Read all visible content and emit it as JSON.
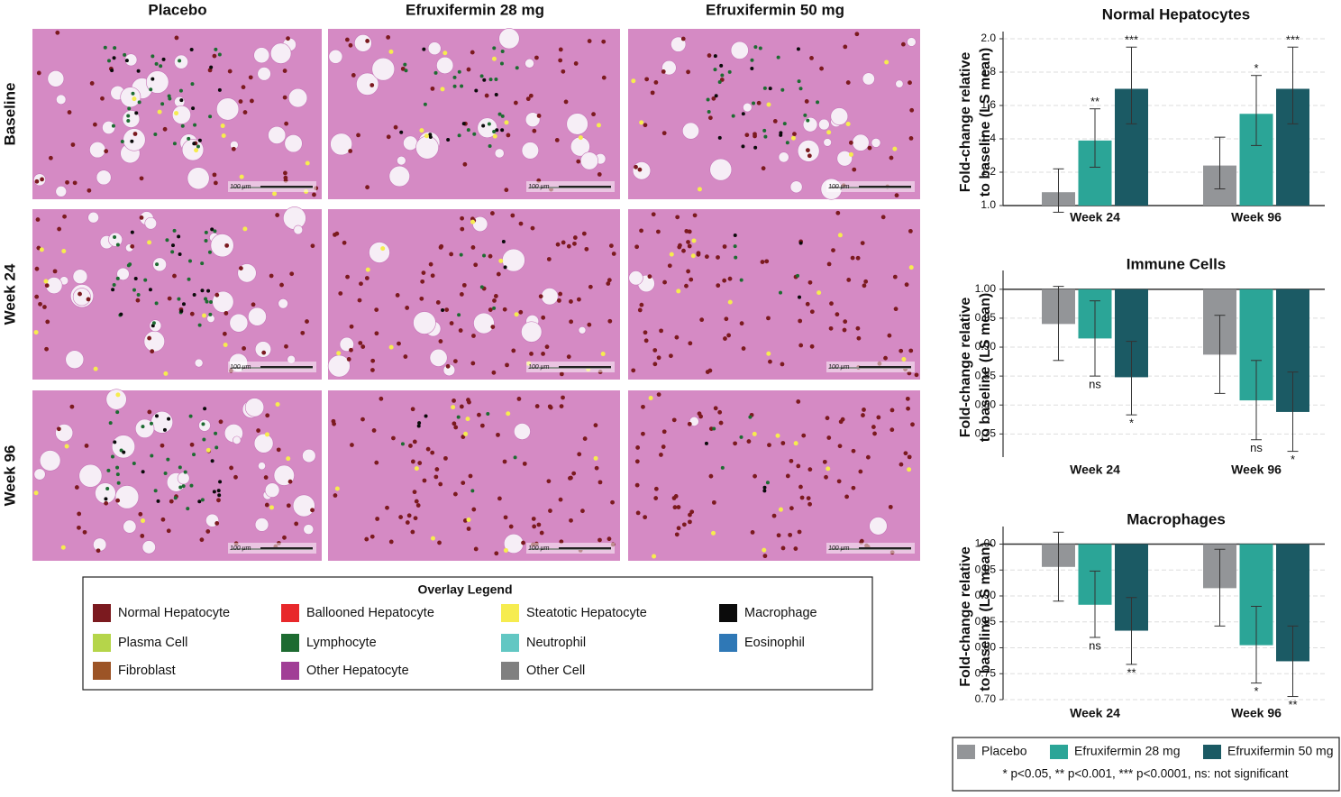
{
  "figure": {
    "column_headers": [
      "Placebo",
      "Efruxifermin 28 mg",
      "Efruxifermin 50 mg"
    ],
    "row_labels": [
      "Baseline",
      "Week 24",
      "Week 96"
    ],
    "scale_bar_label": "100 µm",
    "overlay_legend": {
      "title": "Overlay Legend",
      "items": [
        {
          "name": "Normal Hepatocyte",
          "color": "#7b1a1f"
        },
        {
          "name": "Ballooned Hepatocyte",
          "color": "#e8282b"
        },
        {
          "name": "Steatotic Hepatocyte",
          "color": "#f6ec4f"
        },
        {
          "name": "Macrophage",
          "color": "#0b0b0b"
        },
        {
          "name": "Plasma Cell",
          "color": "#b5d54a"
        },
        {
          "name": "Lymphocyte",
          "color": "#1d6b31"
        },
        {
          "name": "Neutrophil",
          "color": "#62c7c3"
        },
        {
          "name": "Eosinophil",
          "color": "#2f78b6"
        },
        {
          "name": "Fibroblast",
          "color": "#9c5426"
        },
        {
          "name": "Other Hepatocyte",
          "color": "#a13e96"
        },
        {
          "name": "Other Cell",
          "color": "#808080"
        }
      ]
    }
  },
  "chart_data": [
    {
      "type": "bar",
      "title": "Normal Hepatocytes",
      "ylabel": [
        "Fold-change relative",
        "to baseline (LS mean)"
      ],
      "categories": [
        "Week 24",
        "Week 96"
      ],
      "series": [
        {
          "name": "Placebo",
          "color": "#939598",
          "values": [
            1.08,
            1.24
          ],
          "lower": [
            0.96,
            1.1
          ],
          "upper": [
            1.22,
            1.41
          ],
          "significance": [
            null,
            null
          ]
        },
        {
          "name": "Efruxifermin 28 mg",
          "color": "#2ba597",
          "values": [
            1.39,
            1.55
          ],
          "lower": [
            1.23,
            1.36
          ],
          "upper": [
            1.58,
            1.78
          ],
          "significance": [
            "**",
            "*"
          ]
        },
        {
          "name": "Efruxifermin 50 mg",
          "color": "#1b5a64",
          "values": [
            1.7,
            1.7
          ],
          "lower": [
            1.49,
            1.49
          ],
          "upper": [
            1.95,
            1.95
          ],
          "significance": [
            "***",
            "***"
          ]
        }
      ],
      "ylim": [
        1,
        2
      ],
      "yticks": [
        {
          "value": 1,
          "label": "1.0"
        },
        1.2,
        1.4,
        1.6,
        1.8,
        {
          "value": 2,
          "label": "2.0"
        }
      ],
      "grid": true
    },
    {
      "type": "bar",
      "title": "Immune Cells",
      "ylabel": [
        "Fold-change relative",
        "to baseline (LS mean)"
      ],
      "categories": [
        "Week 24",
        "Week 96"
      ],
      "series": [
        {
          "name": "Placebo",
          "color": "#939598",
          "values": [
            0.94,
            0.887
          ],
          "lower": [
            0.877,
            0.82
          ],
          "upper": [
            1.005,
            0.955
          ],
          "significance": [
            null,
            null
          ]
        },
        {
          "name": "Efruxifermin 28 mg",
          "color": "#2ba597",
          "values": [
            0.915,
            0.808
          ],
          "lower": [
            0.85,
            0.74
          ],
          "upper": [
            0.98,
            0.877
          ],
          "significance": [
            "ns",
            "ns"
          ]
        },
        {
          "name": "Efruxifermin 50 mg",
          "color": "#1b5a64",
          "values": [
            0.848,
            0.788
          ],
          "lower": [
            0.783,
            0.72
          ],
          "upper": [
            0.91,
            0.857
          ],
          "significance": [
            "*",
            "*"
          ]
        }
      ],
      "ylim": [
        0.71,
        1.02
      ],
      "yticks": [
        0.75,
        {
          "value": 0.8,
          "label": "0.80"
        },
        0.85,
        {
          "value": 0.9,
          "label": "0.90"
        },
        0.95,
        {
          "value": 1,
          "label": "1.00"
        }
      ],
      "grid": true
    },
    {
      "type": "bar",
      "title": "Macrophages",
      "ylabel": [
        "Fold-change relative",
        "to baseline (LS mean)"
      ],
      "categories": [
        "Week 24",
        "Week 96"
      ],
      "series": [
        {
          "name": "Placebo",
          "color": "#939598",
          "values": [
            0.956,
            0.915
          ],
          "lower": [
            0.89,
            0.842
          ],
          "upper": [
            1.023,
            0.99
          ],
          "significance": [
            null,
            null
          ]
        },
        {
          "name": "Efruxifermin 28 mg",
          "color": "#2ba597",
          "values": [
            0.883,
            0.805
          ],
          "lower": [
            0.82,
            0.732
          ],
          "upper": [
            0.948,
            0.88
          ],
          "significance": [
            "ns",
            "*"
          ]
        },
        {
          "name": "Efruxifermin 50 mg",
          "color": "#1b5a64",
          "values": [
            0.833,
            0.774
          ],
          "lower": [
            0.768,
            0.706
          ],
          "upper": [
            0.897,
            0.842
          ],
          "significance": [
            "**",
            "**"
          ]
        }
      ],
      "ylim": [
        0.7,
        1.02
      ],
      "yticks": [
        {
          "value": 0.7,
          "label": "0.70"
        },
        0.75,
        {
          "value": 0.8,
          "label": "0.80"
        },
        0.85,
        {
          "value": 0.9,
          "label": "0.90"
        },
        0.95,
        {
          "value": 1,
          "label": "1.00"
        }
      ],
      "grid": true
    }
  ],
  "significance_note": "* p<0.05, ** p<0.001, *** p<0.0001, ns: not significant"
}
